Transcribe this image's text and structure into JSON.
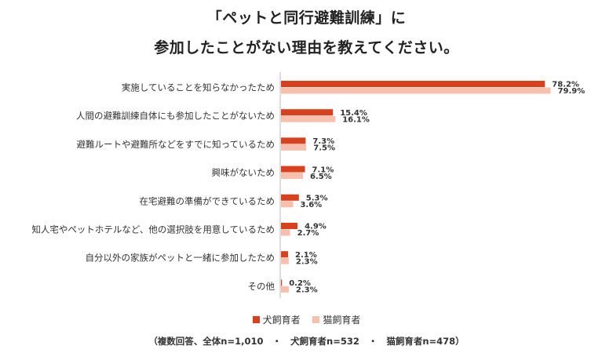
{
  "title_line1": "「ペットと同行避難訓練」に",
  "title_line2": "参加したことがない理由を教えてください。",
  "note": "（複数回答、全体n=1,010　・　犬飼育者n=532　・　猫飼育者n=478）",
  "colors": {
    "dog": "#d9411e",
    "cat": "#f7c0ad",
    "axis": "#bbbbbb"
  },
  "chart_data": {
    "type": "bar",
    "orientation": "horizontal",
    "title": "「ペットと同行避難訓練」に 参加したことがない理由を教えてください。",
    "categories": [
      "実施していることを知らなかったため",
      "人間の避難訓練自体にも参加したことがないため",
      "避難ルートや避難所などをすでに知っているため",
      "興味がないため",
      "在宅避難の準備ができているため",
      "知人宅やペットホテルなど、他の選択肢を用意しているため",
      "自分以外の家族がペットと一緒に参加したため",
      "その他"
    ],
    "series": [
      {
        "name": "犬飼育者",
        "values": [
          78.2,
          15.4,
          7.3,
          7.1,
          5.3,
          4.9,
          2.1,
          0.2
        ]
      },
      {
        "name": "猫飼育者",
        "values": [
          79.9,
          16.1,
          7.5,
          6.5,
          3.6,
          2.7,
          2.3,
          2.3
        ]
      }
    ],
    "value_suffix": "%",
    "xlim": [
      0,
      100
    ],
    "legend_position": "bottom"
  }
}
